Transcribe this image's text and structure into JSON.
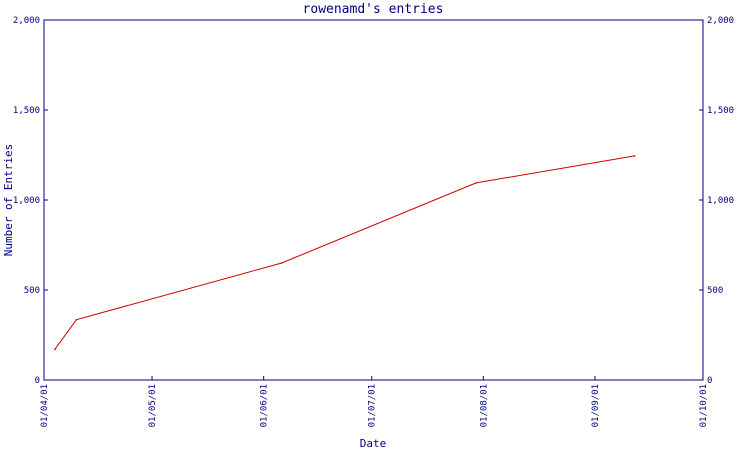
{
  "chart_data": {
    "type": "line",
    "title": "rowenamd's entries",
    "xlabel": "Date",
    "ylabel": "Number of Entries",
    "x_ticks": [
      "01/04/01",
      "01/05/01",
      "01/06/01",
      "01/07/01",
      "01/08/01",
      "01/09/01",
      "01/10/01"
    ],
    "xlim": [
      "2001-04-01",
      "2001-10-01"
    ],
    "y_ticks": [
      "0",
      "500",
      "1,000",
      "1,500",
      "2,000"
    ],
    "ylim": [
      0,
      2000
    ],
    "grid": false,
    "secondary_y_axis": true,
    "series": [
      {
        "color": "#cc0000",
        "points": [
          {
            "x": "2001-04-04",
            "y": 170
          },
          {
            "x": "2001-04-10",
            "y": 335
          },
          {
            "x": "2001-06-06",
            "y": 650
          },
          {
            "x": "2001-07-30",
            "y": 1095
          },
          {
            "x": "2001-09-12",
            "y": 1245
          }
        ]
      }
    ]
  }
}
